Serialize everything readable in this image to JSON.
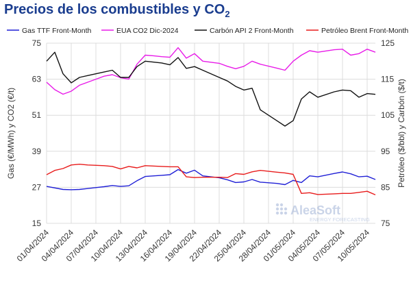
{
  "title_main": "Precios de los combustibles y CO",
  "title_sub": "2",
  "logo": {
    "brand": "AleaSoft",
    "tagline": "ENERGY FORECASTING"
  },
  "chart_data": {
    "type": "line",
    "x": [
      "01/04/2024",
      "02/04/2024",
      "03/04/2024",
      "04/04/2024",
      "05/04/2024",
      "06/04/2024",
      "07/04/2024",
      "08/04/2024",
      "09/04/2024",
      "10/04/2024",
      "11/04/2024",
      "12/04/2024",
      "13/04/2024",
      "14/04/2024",
      "15/04/2024",
      "16/04/2024",
      "17/04/2024",
      "18/04/2024",
      "19/04/2024",
      "20/04/2024",
      "21/04/2024",
      "22/04/2024",
      "23/04/2024",
      "24/04/2024",
      "25/04/2024",
      "26/04/2024",
      "27/04/2024",
      "28/04/2024",
      "29/04/2024",
      "30/04/2024",
      "01/05/2024",
      "02/05/2024",
      "03/05/2024",
      "04/05/2024",
      "05/05/2024",
      "06/05/2024",
      "07/05/2024",
      "08/05/2024",
      "09/05/2024",
      "10/05/2024",
      "11/05/2024"
    ],
    "xticks": [
      "01/04/2024",
      "04/04/2024",
      "07/04/2024",
      "10/04/2024",
      "13/04/2024",
      "16/04/2024",
      "19/04/2024",
      "22/04/2024",
      "25/04/2024",
      "28/04/2024",
      "01/05/2024",
      "04/05/2024",
      "07/05/2024",
      "10/05/2024"
    ],
    "ylabel_left": "Gas (€/MWh) y CO2 (€/t)",
    "ylabel_right": "Petróleo ($/bbl) y Carbón ($/t)",
    "ylim_left": [
      15,
      75
    ],
    "yticks_left": [
      15,
      27,
      39,
      51,
      63,
      75
    ],
    "ylim_right": [
      75,
      125
    ],
    "yticks_right": [
      75,
      85,
      95,
      105,
      115,
      125
    ],
    "legend_position": "top",
    "series": [
      {
        "name": "Gas TTF Front-Month",
        "axis": "left",
        "color": "#1f1fd6",
        "values": [
          27.3,
          null,
          26.3,
          26.2,
          26.3,
          26.6,
          26.9,
          27.2,
          27.6,
          27.3,
          27.5,
          29.2,
          30.6,
          null,
          31.0,
          31.2,
          32.9,
          31.7,
          32.7,
          30.8,
          null,
          30.2,
          29.5,
          28.6,
          28.8,
          29.6,
          28.7,
          null,
          28.3,
          27.9,
          29.3,
          28.6,
          30.8,
          30.5,
          null,
          31.6,
          32.1,
          31.5,
          30.5,
          30.7,
          29.6
        ]
      },
      {
        "name": "EUA CO2 Dic-2024",
        "axis": "left",
        "color": "#e81be8",
        "values": [
          62.0,
          59.5,
          58.0,
          59.0,
          61.0,
          62.0,
          63.0,
          64.0,
          64.5,
          63.5,
          63.0,
          68.0,
          71.0,
          70.8,
          70.5,
          70.3,
          73.5,
          70.0,
          71.5,
          69.0,
          null,
          68.3,
          67.3,
          66.5,
          67.3,
          69.0,
          68.0,
          null,
          66.7,
          66.0,
          69.0,
          71.0,
          72.5,
          72.0,
          null,
          72.8,
          73.0,
          71.0,
          71.5,
          73.0,
          72.0
        ]
      },
      {
        "name": "Carbón API 2 Front-Month",
        "axis": "right",
        "color": "#111111",
        "values": [
          120.0,
          122.5,
          116.5,
          114.0,
          115.5,
          116.0,
          null,
          117.0,
          117.5,
          115.5,
          115.5,
          118.5,
          120.0,
          null,
          119.5,
          119.0,
          121.0,
          118.0,
          118.5,
          117.5,
          null,
          115.5,
          114.5,
          113.0,
          112.0,
          112.5,
          106.5,
          null,
          103.5,
          102.0,
          103.5,
          109.5,
          111.5,
          110.0,
          null,
          111.5,
          112.0,
          111.8,
          110.0,
          111.0,
          110.8
        ]
      },
      {
        "name": "Petróleo Brent Front-Month",
        "axis": "right",
        "color": "#e81b1b",
        "values": [
          88.5,
          89.7,
          90.2,
          91.2,
          91.4,
          91.2,
          null,
          91.0,
          90.8,
          90.1,
          90.8,
          90.4,
          91.0,
          null,
          90.8,
          90.7,
          90.7,
          87.9,
          87.7,
          87.8,
          null,
          87.8,
          87.7,
          88.8,
          88.6,
          89.3,
          89.7,
          null,
          89.2,
          89.0,
          88.6,
          83.3,
          83.5,
          83.0,
          null,
          83.2,
          83.3,
          83.3,
          83.6,
          83.9,
          82.9
        ]
      }
    ]
  }
}
